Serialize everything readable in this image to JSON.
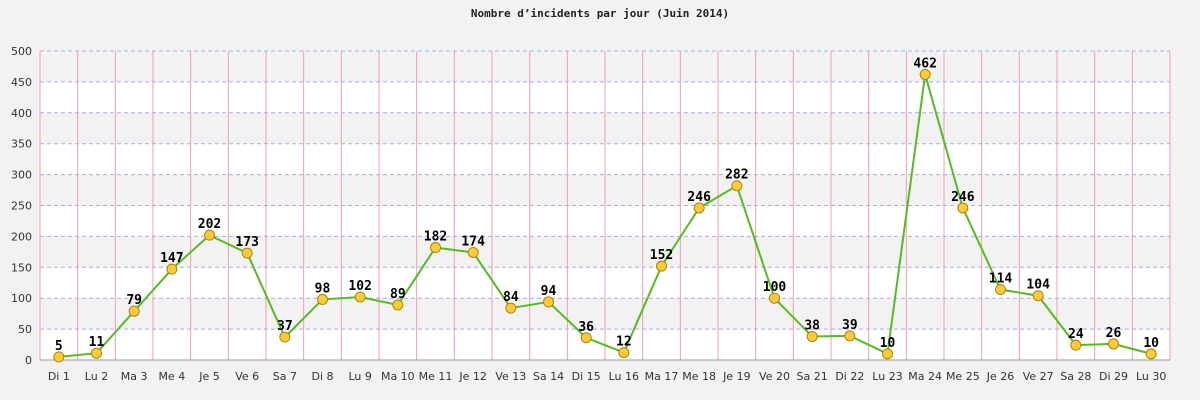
{
  "chart_data": {
    "type": "line",
    "title": "Nombre d’incidents par jour (Juin 2014)",
    "xlabel": "",
    "ylabel": "",
    "ylim": [
      0,
      500
    ],
    "yticks": [
      0,
      50,
      100,
      150,
      200,
      250,
      300,
      350,
      400,
      450,
      500
    ],
    "grid": true,
    "legend": "none",
    "categories": [
      "Di 1",
      "Lu 2",
      "Ma 3",
      "Me 4",
      "Je 5",
      "Ve 6",
      "Sa 7",
      "Di 8",
      "Lu 9",
      "Ma 10",
      "Me 11",
      "Je 12",
      "Ve 13",
      "Sa 14",
      "Di 15",
      "Lu 16",
      "Ma 17",
      "Me 18",
      "Je 19",
      "Ve 20",
      "Sa 21",
      "Di 22",
      "Lu 23",
      "Ma 24",
      "Me 25",
      "Je 26",
      "Ve 27",
      "Sa 28",
      "Di 29",
      "Lu 30"
    ],
    "values": [
      5,
      11,
      79,
      147,
      202,
      173,
      37,
      98,
      102,
      89,
      182,
      174,
      84,
      94,
      36,
      12,
      152,
      246,
      282,
      100,
      38,
      39,
      10,
      462,
      246,
      114,
      104,
      24,
      26,
      10
    ],
    "colors": {
      "line": "#55bb22",
      "marker_fill": "#ffcc33",
      "marker_stroke": "#b08010",
      "band_light": "#ffffff",
      "band_dark": "#f2f2f2",
      "hgrid": "#aaaaee",
      "vgrid": "#f0a0a0",
      "background": "#f2f2f2"
    }
  }
}
